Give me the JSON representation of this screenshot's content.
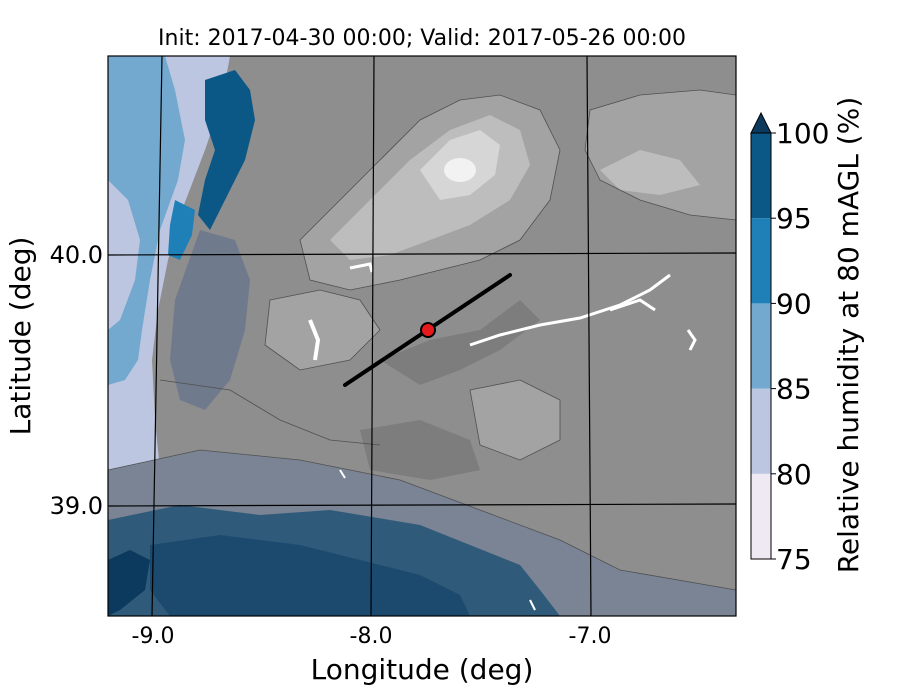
{
  "title": "Init: 2017-04-30 00:00; Valid: 2017-05-26 00:00",
  "xlabel": "Longitude (deg)",
  "ylabel": "Latitude (deg)",
  "x_ticks": [
    "-9.0",
    "-8.0",
    "-7.0"
  ],
  "y_ticks": [
    "40.0",
    "39.0"
  ],
  "extent": {
    "lon": [
      -9.25,
      -6.4
    ],
    "lat": [
      38.55,
      40.8
    ]
  },
  "colorbar": {
    "label": "Relative humidity at 80 mAGL (%)",
    "ticks": [
      "75",
      "80",
      "85",
      "90",
      "95",
      "100"
    ],
    "levels": [
      75,
      80,
      85,
      90,
      95,
      100
    ],
    "colors": [
      "#efe9f4",
      "#bcc6e0",
      "#74a9cf",
      "#1f80b8",
      "#0b5785",
      "#0b3a5e"
    ],
    "extend": "max"
  },
  "transect": {
    "start": {
      "lon": -8.12,
      "lat": 39.48
    },
    "end": {
      "lon": -7.35,
      "lat": 39.92
    }
  },
  "station": {
    "lon": -7.74,
    "lat": 39.68,
    "color": "#e41a1c"
  },
  "terrain_colors": [
    "#8e8e8e",
    "#a3a3a3",
    "#bdbdbd",
    "#d6d6d6",
    "#f2f2f2"
  ]
}
